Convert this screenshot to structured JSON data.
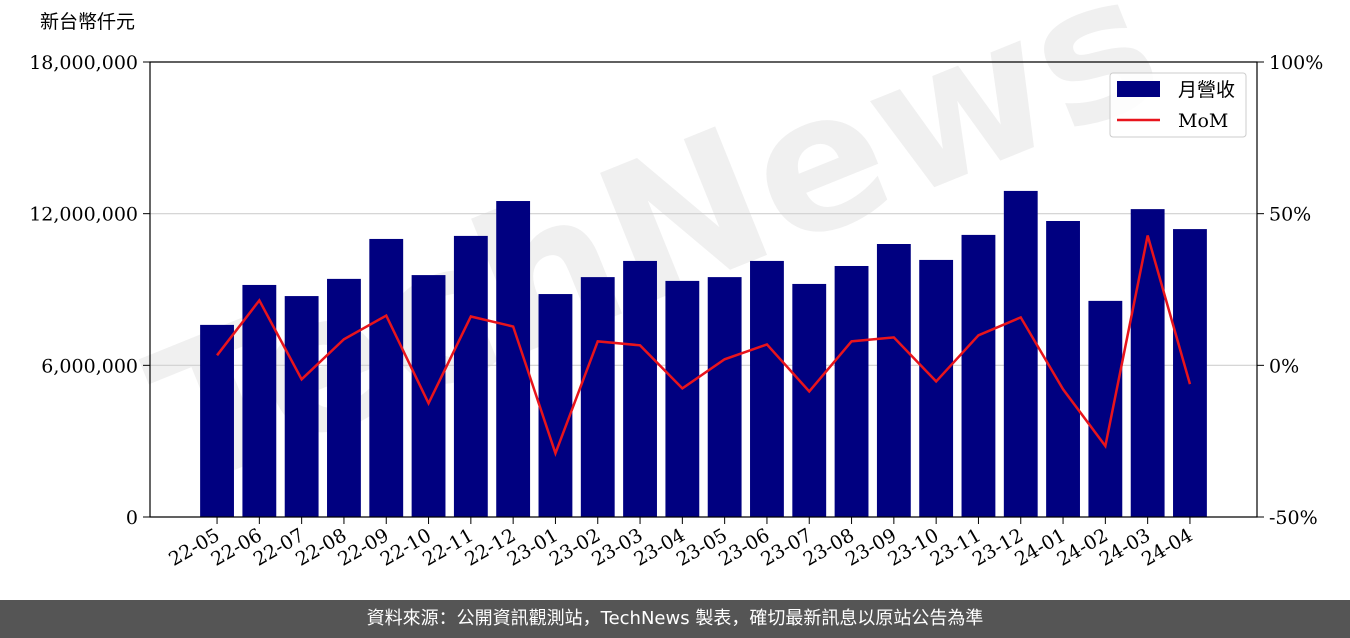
{
  "chart_data": {
    "type": "bar",
    "y_label": "新台幣仟元",
    "watermark": "TechNews",
    "categories": [
      "22-05",
      "22-06",
      "22-07",
      "22-08",
      "22-09",
      "22-10",
      "22-11",
      "22-12",
      "23-01",
      "23-02",
      "23-03",
      "23-04",
      "23-05",
      "23-06",
      "23-07",
      "23-08",
      "23-09",
      "23-10",
      "23-11",
      "23-12",
      "24-01",
      "24-02",
      "24-03",
      "24-04"
    ],
    "series": [
      {
        "name": "月營收",
        "type": "bar",
        "color": "#000080",
        "values": [
          7600000,
          9180000,
          8740000,
          9420000,
          11000000,
          9570000,
          11120000,
          12500000,
          8820000,
          9490000,
          10130000,
          9340000,
          9490000,
          10130000,
          9220000,
          9930000,
          10800000,
          10170000,
          11160000,
          12900000,
          11710000,
          8550000,
          12180000,
          11390000
        ]
      },
      {
        "name": "MoM",
        "type": "line",
        "axis": "y2",
        "color": "#e8141c",
        "values": [
          3.3,
          21.4,
          -4.6,
          8.6,
          16.4,
          -12.5,
          16.1,
          12.8,
          -29,
          7.9,
          6.6,
          -7.6,
          2.0,
          6.9,
          -8.6,
          7.9,
          9.2,
          -5.3,
          9.9,
          15.8,
          -7.9,
          -26.6,
          42.8,
          -6.2
        ]
      }
    ],
    "ylim": [
      0,
      18000000
    ],
    "yticks": [
      0,
      {
        "value": 6000000,
        "label": "6,000,000"
      },
      {
        "value": 12000000,
        "label": "12,000,000"
      },
      {
        "value": 18000000,
        "label": "18,000,000"
      }
    ],
    "y2lim": [
      -50,
      100
    ],
    "y2ticks": [
      {
        "value": -50,
        "label": "-50%"
      },
      {
        "value": 0,
        "label": "0%"
      },
      {
        "value": 50,
        "label": "50%"
      },
      {
        "value": 100,
        "label": "100%"
      }
    ],
    "grid": true,
    "legend": "upper right",
    "footer": "資料來源：公開資訊觀測站，TechNews 製表，確切最新訊息以原站公告為準"
  }
}
